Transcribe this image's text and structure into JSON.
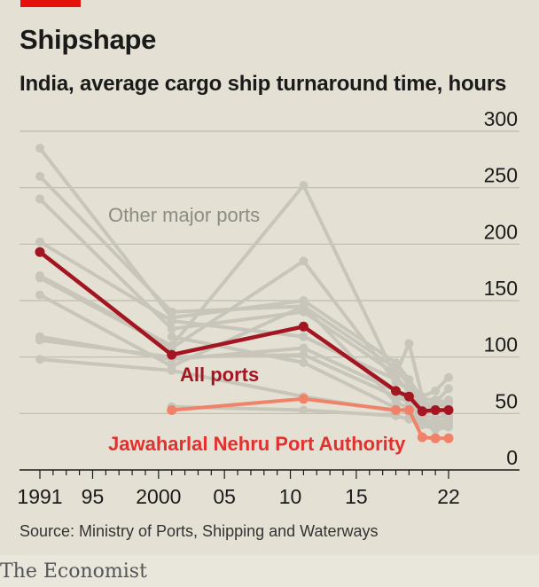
{
  "header": {
    "title": "Shipshape",
    "subtitle": "India, average cargo ship turnaround time, hours"
  },
  "footer": {
    "source": "Source: Ministry of Ports, Shipping and Waterways",
    "brand": "The Economist"
  },
  "colors": {
    "accent": "#e3120b",
    "all_ports": "#a31621",
    "jnpa": "#f0826a",
    "jnpa_label": "#e2302f",
    "other_ports": "#c8c6bb",
    "grid": "#bcbab0"
  },
  "chart_data": {
    "type": "line",
    "ylim": [
      0,
      300
    ],
    "y_ticks": [
      0,
      50,
      100,
      150,
      200,
      250,
      300
    ],
    "xlim": [
      1990,
      2024
    ],
    "x_ticks": [
      1991,
      1995,
      2000,
      2005,
      2010,
      2015,
      2022
    ],
    "x_tick_labels": [
      "1991",
      "95",
      "2000",
      "05",
      "10",
      "15",
      "22"
    ],
    "annotations": {
      "other": "Other major ports",
      "all": "All ports",
      "jnpa": "Jawaharlal Nehru Port Authority"
    },
    "highlight": [
      {
        "key": "all",
        "color": "#a31621",
        "points": [
          [
            1991,
            193
          ],
          [
            2001,
            102
          ],
          [
            2011,
            127
          ],
          [
            2018,
            70
          ],
          [
            2019,
            65
          ],
          [
            2020,
            52
          ],
          [
            2021,
            53
          ],
          [
            2022,
            53
          ]
        ]
      },
      {
        "key": "jnpa",
        "color": "#f0826a",
        "points": [
          [
            2001,
            53
          ],
          [
            2011,
            63
          ],
          [
            2018,
            53
          ],
          [
            2019,
            53
          ],
          [
            2020,
            29
          ],
          [
            2021,
            28
          ],
          [
            2022,
            28
          ]
        ]
      }
    ],
    "other_ports": [
      [
        [
          1991,
          285
        ],
        [
          2001,
          135
        ],
        [
          2011,
          150
        ],
        [
          2018,
          95
        ],
        [
          2019,
          80
        ],
        [
          2020,
          63
        ],
        [
          2021,
          62
        ],
        [
          2022,
          60
        ]
      ],
      [
        [
          1991,
          260
        ],
        [
          2001,
          140
        ],
        [
          2011,
          145
        ],
        [
          2018,
          90
        ],
        [
          2019,
          75
        ],
        [
          2020,
          60
        ],
        [
          2021,
          58
        ],
        [
          2022,
          56
        ]
      ],
      [
        [
          1991,
          240
        ],
        [
          2001,
          125
        ],
        [
          2011,
          140
        ],
        [
          2018,
          85
        ],
        [
          2019,
          112
        ],
        [
          2020,
          65
        ],
        [
          2021,
          70
        ],
        [
          2022,
          82
        ]
      ],
      [
        [
          1991,
          202
        ],
        [
          2001,
          132
        ],
        [
          2011,
          118
        ],
        [
          2018,
          80
        ],
        [
          2019,
          70
        ],
        [
          2020,
          55
        ],
        [
          2021,
          60
        ],
        [
          2022,
          72
        ]
      ],
      [
        [
          1991,
          172
        ],
        [
          2001,
          110
        ],
        [
          2011,
          252
        ],
        [
          2018,
          82
        ],
        [
          2019,
          70
        ],
        [
          2020,
          58
        ],
        [
          2021,
          55
        ],
        [
          2022,
          62
        ]
      ],
      [
        [
          1991,
          170
        ],
        [
          2001,
          108
        ],
        [
          2011,
          185
        ],
        [
          2018,
          78
        ],
        [
          2019,
          72
        ],
        [
          2020,
          55
        ],
        [
          2021,
          50
        ],
        [
          2022,
          55
        ]
      ],
      [
        [
          1991,
          155
        ],
        [
          2001,
          92
        ],
        [
          2011,
          145
        ],
        [
          2018,
          60
        ],
        [
          2019,
          55
        ],
        [
          2020,
          45
        ],
        [
          2021,
          42
        ],
        [
          2022,
          45
        ]
      ],
      [
        [
          1991,
          118
        ],
        [
          2001,
          98
        ],
        [
          2011,
          108
        ],
        [
          2018,
          70
        ],
        [
          2019,
          62
        ],
        [
          2020,
          50
        ],
        [
          2021,
          45
        ],
        [
          2022,
          50
        ]
      ],
      [
        [
          1991,
          115
        ],
        [
          2001,
          100
        ],
        [
          2011,
          102
        ],
        [
          2018,
          65
        ],
        [
          2019,
          60
        ],
        [
          2020,
          48
        ],
        [
          2021,
          46
        ],
        [
          2022,
          48
        ]
      ],
      [
        [
          1991,
          98
        ],
        [
          2001,
          88
        ],
        [
          2011,
          65
        ],
        [
          2018,
          52
        ],
        [
          2019,
          55
        ],
        [
          2020,
          44
        ],
        [
          2021,
          40
        ],
        [
          2022,
          42
        ]
      ],
      [
        [
          2001,
          118
        ],
        [
          2011,
          95
        ],
        [
          2018,
          55
        ],
        [
          2019,
          50
        ],
        [
          2020,
          42
        ],
        [
          2021,
          38
        ],
        [
          2022,
          40
        ]
      ],
      [
        [
          2001,
          56
        ],
        [
          2011,
          53
        ],
        [
          2018,
          48
        ],
        [
          2019,
          45
        ],
        [
          2020,
          40
        ],
        [
          2021,
          36
        ],
        [
          2022,
          38
        ]
      ]
    ]
  }
}
